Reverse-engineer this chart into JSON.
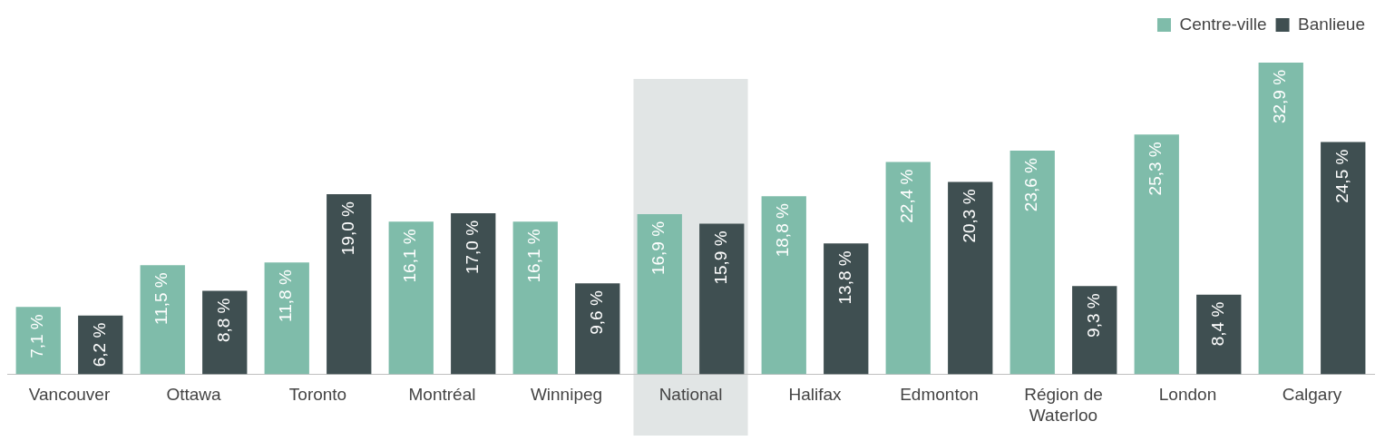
{
  "chart_data": {
    "type": "bar",
    "categories": [
      "Vancouver",
      "Ottawa",
      "Toronto",
      "Montréal",
      "Winnipeg",
      "National",
      "Halifax",
      "Edmonton",
      "Région de Waterloo",
      "London",
      "Calgary"
    ],
    "series": [
      {
        "name": "Centre-ville",
        "color": "#7fbcaa",
        "values": [
          7.1,
          11.5,
          11.8,
          16.1,
          16.1,
          16.9,
          18.8,
          22.4,
          23.6,
          25.3,
          32.9
        ],
        "value_labels": [
          "7,1 %",
          "11,5 %",
          "11,8 %",
          "16,1 %",
          "16,1 %",
          "16,9 %",
          "18,8 %",
          "22,4 %",
          "23,6 %",
          "25,3 %",
          "32,9 %"
        ]
      },
      {
        "name": "Banlieue",
        "color": "#3f4f51",
        "values": [
          6.2,
          8.8,
          19.0,
          17.0,
          9.6,
          15.9,
          13.8,
          20.3,
          9.3,
          8.4,
          24.5
        ],
        "value_labels": [
          "6,2 %",
          "8,8 %",
          "19,0 %",
          "17,0 %",
          "9,6 %",
          "15,9 %",
          "13,8 %",
          "20,3 %",
          "9,3 %",
          "8,4 %",
          "24,5 %"
        ]
      }
    ],
    "bands": [
      {
        "axis": "x",
        "from": "National",
        "to": "National",
        "color": "#e1e5e5"
      }
    ],
    "legend": "top right",
    "grid": false
  }
}
